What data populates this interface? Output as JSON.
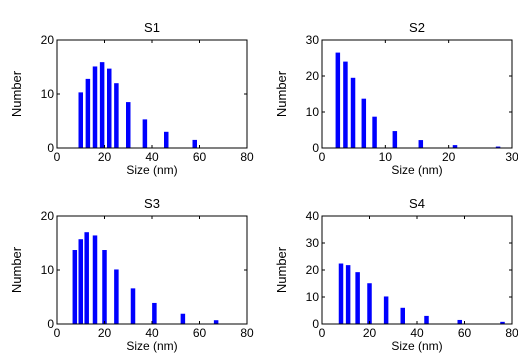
{
  "chart_data": [
    {
      "type": "bar",
      "title": "S1",
      "xlabel": "Size (nm)",
      "ylabel": "Number",
      "xlim": [
        0,
        80
      ],
      "ylim": [
        0,
        20
      ],
      "xticks": [
        0,
        20,
        40,
        60,
        80
      ],
      "yticks": [
        0,
        10,
        20
      ],
      "x": [
        10,
        13,
        16,
        19,
        22,
        25,
        30,
        37,
        46,
        58,
        72
      ],
      "values": [
        10.3,
        12.8,
        15.1,
        15.9,
        14.7,
        12.0,
        8.5,
        5.3,
        3.0,
        1.5,
        0
      ],
      "color": "#0000ff"
    },
    {
      "type": "bar",
      "title": "S2",
      "xlabel": "Size (nm)",
      "ylabel": "Number",
      "xlim": [
        0,
        30
      ],
      "ylim": [
        0,
        30
      ],
      "xticks": [
        0,
        10,
        20,
        30
      ],
      "yticks": [
        0,
        10,
        20,
        30
      ],
      "x": [
        2.5,
        3.7,
        4.9,
        6.6,
        8.3,
        11.5,
        15.6,
        21.0,
        27.8
      ],
      "values": [
        26.5,
        24.0,
        19.5,
        13.7,
        8.7,
        4.7,
        2.2,
        0.8,
        0.4
      ],
      "color": "#0000ff"
    },
    {
      "type": "bar",
      "title": "S3",
      "xlabel": "Size (nm)",
      "ylabel": "Number",
      "xlim": [
        0,
        80
      ],
      "ylim": [
        0,
        20
      ],
      "xticks": [
        0,
        20,
        40,
        60,
        80
      ],
      "yticks": [
        0,
        10,
        20
      ],
      "x": [
        7.5,
        10,
        12.5,
        16,
        20,
        25,
        32,
        41,
        53,
        67
      ],
      "values": [
        13.7,
        15.7,
        17.0,
        16.4,
        13.7,
        10.1,
        6.6,
        3.9,
        1.9,
        0.7
      ],
      "color": "#0000ff"
    },
    {
      "type": "bar",
      "title": "S4",
      "xlabel": "Size (nm)",
      "ylabel": "Number",
      "xlim": [
        0,
        80
      ],
      "ylim": [
        0,
        40
      ],
      "xticks": [
        0,
        20,
        40,
        60,
        80
      ],
      "yticks": [
        0,
        10,
        20,
        30,
        40
      ],
      "x": [
        8,
        11,
        15,
        20,
        27,
        34,
        44,
        58,
        76
      ],
      "values": [
        22.4,
        21.8,
        19.2,
        15.1,
        10.2,
        6.0,
        3.0,
        1.5,
        0.8
      ],
      "color": "#0000ff"
    }
  ]
}
